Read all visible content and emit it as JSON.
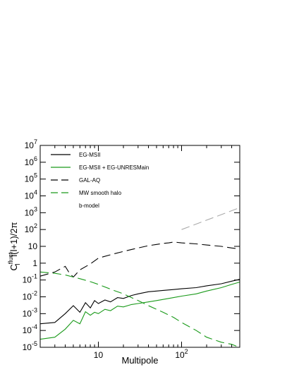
{
  "chart_data": {
    "type": "line",
    "xscale": "log",
    "yscale": "log",
    "xlim": [
      2,
      500
    ],
    "ylim": [
      1e-05,
      10000000
    ],
    "xlabel": "Multipole",
    "ylabel": {
      "main": "C",
      "sup": "fluct",
      "sub": "l",
      "tail": "l(l+1)/2π"
    },
    "x_tick_labels": [
      {
        "value": 10,
        "label": "10",
        "sup": ""
      },
      {
        "value": 100,
        "label": "10",
        "sup": "2"
      }
    ],
    "y_tick_labels": [
      {
        "value": 1e-05,
        "base": "10",
        "sup": "-5"
      },
      {
        "value": 0.0001,
        "base": "10",
        "sup": "-4"
      },
      {
        "value": 0.001,
        "base": "10",
        "sup": "-3"
      },
      {
        "value": 0.01,
        "base": "10",
        "sup": "-2"
      },
      {
        "value": 0.1,
        "base": "10",
        "sup": "-1"
      },
      {
        "value": 1,
        "base": "1",
        "sup": ""
      },
      {
        "value": 10,
        "base": "10",
        "sup": ""
      },
      {
        "value": 100,
        "base": "10",
        "sup": "2"
      },
      {
        "value": 1000,
        "base": "10",
        "sup": "3"
      },
      {
        "value": 10000,
        "base": "10",
        "sup": "4"
      },
      {
        "value": 100000,
        "base": "10",
        "sup": "5"
      },
      {
        "value": 1000000,
        "base": "10",
        "sup": "6"
      },
      {
        "value": 10000000,
        "base": "10",
        "sup": "7"
      }
    ],
    "legend_placement": "top-left",
    "series": [
      {
        "name": "EG-MSII",
        "color": "#000000",
        "dash": "solid",
        "x": [
          2,
          3,
          4,
          5,
          6,
          7,
          8,
          9,
          10,
          12,
          14,
          17,
          20,
          25,
          30,
          40,
          50,
          60,
          80,
          100,
          150,
          200,
          300,
          400,
          500
        ],
        "y": [
          0.00025,
          0.0003,
          0.001,
          0.003,
          0.0012,
          0.0045,
          0.0022,
          0.006,
          0.004,
          0.0065,
          0.005,
          0.009,
          0.008,
          0.012,
          0.015,
          0.02,
          0.022,
          0.024,
          0.027,
          0.03,
          0.035,
          0.045,
          0.06,
          0.085,
          0.11
        ]
      },
      {
        "name": "EG-MSII + EG-UNRESMain",
        "color": "#1a9a1a",
        "dash": "solid",
        "x": [
          2,
          3,
          4,
          5,
          6,
          7,
          8,
          9,
          10,
          12,
          14,
          17,
          20,
          25,
          30,
          40,
          50,
          60,
          80,
          100,
          150,
          200,
          300,
          400,
          500
        ],
        "y": [
          3e-05,
          4e-05,
          0.00012,
          0.0004,
          0.00025,
          0.0013,
          0.0008,
          0.0012,
          0.001,
          0.0018,
          0.0015,
          0.0028,
          0.0025,
          0.0035,
          0.004,
          0.005,
          0.006,
          0.007,
          0.009,
          0.011,
          0.015,
          0.022,
          0.035,
          0.055,
          0.075
        ]
      },
      {
        "name": "GAL-AQ",
        "color": "#000000",
        "dash": "long",
        "x": [
          2,
          3,
          4,
          4.5,
          5,
          6,
          8,
          10,
          15,
          20,
          30,
          40,
          50,
          60,
          70,
          80,
          90,
          100,
          150,
          200,
          300,
          400,
          500
        ],
        "y": [
          0.17,
          0.3,
          0.65,
          0.25,
          0.15,
          0.4,
          0.9,
          2,
          3.5,
          5,
          8,
          11,
          13,
          15,
          16,
          18,
          17,
          16,
          14,
          12,
          10,
          8,
          7
        ]
      },
      {
        "name": "MW smooth halo",
        "color": "#1a9a1a",
        "dash": "long",
        "x": [
          2,
          3,
          4,
          5,
          6,
          8,
          10,
          15,
          20,
          30,
          40,
          50,
          60,
          80,
          100,
          150,
          200,
          300,
          400,
          450,
          500
        ],
        "y": [
          0.3,
          0.25,
          0.2,
          0.15,
          0.12,
          0.08,
          0.055,
          0.025,
          0.015,
          0.006,
          0.003,
          0.0018,
          0.0012,
          0.0006,
          0.0003,
          0.0001,
          4e-05,
          2e-05,
          1.5e-05,
          1.2e-05,
          1e-05
        ]
      },
      {
        "name": "b-model",
        "color": "#aaaaaa",
        "dash": "long",
        "x": [
          100,
          500
        ],
        "y": [
          100,
          2000
        ]
      }
    ]
  }
}
